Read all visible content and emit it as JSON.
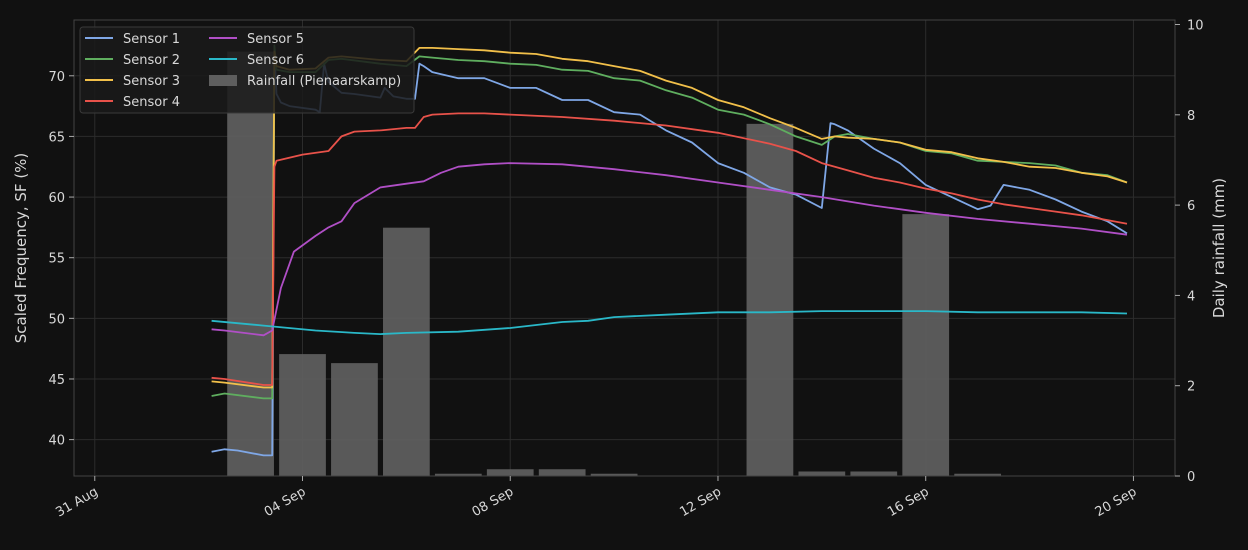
{
  "chart_data": {
    "type": "line",
    "title": "",
    "xlabel": "",
    "ylabel": "Scaled Frequency, SF (%)",
    "y2label": "Daily rainfall (mm)",
    "x_ticks": [
      "31 Aug",
      "04 Sep",
      "08 Sep",
      "12 Sep",
      "16 Sep",
      "20 Sep"
    ],
    "x_tick_days": [
      0,
      4,
      8,
      12,
      16,
      20
    ],
    "xlim": [
      -0.4,
      20.8
    ],
    "ylim": [
      37,
      74.6
    ],
    "y_ticks": [
      40,
      45,
      50,
      55,
      60,
      65,
      70
    ],
    "y2lim": [
      0,
      10.1
    ],
    "y2_ticks": [
      0,
      2,
      4,
      6,
      8,
      10
    ],
    "grid": true,
    "legend_placement": "top-left",
    "series": [
      {
        "name": "Sensor 1",
        "color": "#7fa7e6",
        "x": [
          "2 Sep 06:00",
          "2 Sep 12:00",
          "2 Sep 18:00",
          "3 Sep 06:00",
          "3 Sep 10:00",
          "3 Sep 11:00",
          "3 Sep 12:00",
          "3 Sep 14:00",
          "3 Sep 18:00",
          "4 Sep 06:00",
          "4 Sep 08:00",
          "4 Sep 10:00",
          "4 Sep 12:00",
          "4 Sep 18:00",
          "5 Sep 00:00",
          "5 Sep 12:00",
          "5 Sep 14:00",
          "5 Sep 18:00",
          "6 Sep 00:00",
          "6 Sep 04:00",
          "6 Sep 06:00",
          "6 Sep 08:00",
          "6 Sep 12:00",
          "7 Sep 00:00",
          "7 Sep 12:00",
          "8 Sep 00:00",
          "8 Sep 12:00",
          "9 Sep 00:00",
          "9 Sep 12:00",
          "10 Sep 00:00",
          "10 Sep 12:00",
          "11 Sep 00:00",
          "11 Sep 12:00",
          "12 Sep 00:00",
          "12 Sep 12:00",
          "13 Sep 00:00",
          "13 Sep 12:00",
          "14 Sep 00:00",
          "14 Sep 04:00",
          "14 Sep 06:00",
          "14 Sep 12:00",
          "15 Sep 00:00",
          "15 Sep 12:00",
          "16 Sep 00:00",
          "16 Sep 12:00",
          "17 Sep 00:00",
          "17 Sep 06:00",
          "17 Sep 12:00",
          "18 Sep 00:00",
          "18 Sep 12:00",
          "19 Sep 00:00",
          "19 Sep 12:00",
          "19 Sep 21:00"
        ],
        "y": [
          39.0,
          39.2,
          39.1,
          38.7,
          38.7,
          72.0,
          68.5,
          67.8,
          67.5,
          67.2,
          67.0,
          71.0,
          69.5,
          68.6,
          68.5,
          68.2,
          69.0,
          68.3,
          68.1,
          68.1,
          71.0,
          70.8,
          70.3,
          69.8,
          69.8,
          69.0,
          69.0,
          68.0,
          68.0,
          67.0,
          66.8,
          65.5,
          64.5,
          62.8,
          62.0,
          60.8,
          60.2,
          59.1,
          66.1,
          66.0,
          65.5,
          64.0,
          62.8,
          61.0,
          60.0,
          59.0,
          59.3,
          61.0,
          60.6,
          59.8,
          58.8,
          58.0,
          57.0
        ]
      },
      {
        "name": "Sensor 2",
        "color": "#5fae5f",
        "x": [
          "2 Sep 06:00",
          "2 Sep 12:00",
          "3 Sep 06:00",
          "3 Sep 10:00",
          "3 Sep 11:00",
          "3 Sep 12:00",
          "3 Sep 18:00",
          "4 Sep 06:00",
          "4 Sep 12:00",
          "4 Sep 18:00",
          "5 Sep 12:00",
          "6 Sep 00:00",
          "6 Sep 06:00",
          "6 Sep 12:00",
          "7 Sep 00:00",
          "7 Sep 12:00",
          "8 Sep 00:00",
          "8 Sep 12:00",
          "9 Sep 00:00",
          "9 Sep 12:00",
          "10 Sep 00:00",
          "10 Sep 12:00",
          "11 Sep 00:00",
          "11 Sep 12:00",
          "12 Sep 00:00",
          "12 Sep 12:00",
          "13 Sep 00:00",
          "13 Sep 12:00",
          "14 Sep 00:00",
          "14 Sep 06:00",
          "14 Sep 12:00",
          "15 Sep 00:00",
          "15 Sep 12:00",
          "16 Sep 00:00",
          "16 Sep 12:00",
          "17 Sep 00:00",
          "17 Sep 12:00",
          "18 Sep 00:00",
          "18 Sep 12:00",
          "19 Sep 00:00",
          "19 Sep 12:00",
          "19 Sep 21:00"
        ],
        "y": [
          43.6,
          43.8,
          43.4,
          43.4,
          72.5,
          70.5,
          70.3,
          70.3,
          71.3,
          71.4,
          71.0,
          70.8,
          71.6,
          71.5,
          71.3,
          71.2,
          71.0,
          70.9,
          70.5,
          70.4,
          69.8,
          69.6,
          68.8,
          68.2,
          67.2,
          66.8,
          66.0,
          65.0,
          64.3,
          65.0,
          65.2,
          64.8,
          64.5,
          63.8,
          63.6,
          63.0,
          62.9,
          62.8,
          62.6,
          62.0,
          61.8,
          61.2
        ]
      },
      {
        "name": "Sensor 3",
        "color": "#f2c04a",
        "x": [
          "2 Sep 06:00",
          "2 Sep 12:00",
          "3 Sep 06:00",
          "3 Sep 10:00",
          "3 Sep 11:00",
          "3 Sep 12:00",
          "3 Sep 18:00",
          "4 Sep 06:00",
          "4 Sep 12:00",
          "4 Sep 18:00",
          "5 Sep 12:00",
          "6 Sep 00:00",
          "6 Sep 06:00",
          "6 Sep 12:00",
          "7 Sep 00:00",
          "7 Sep 12:00",
          "8 Sep 00:00",
          "8 Sep 12:00",
          "9 Sep 00:00",
          "9 Sep 12:00",
          "10 Sep 00:00",
          "10 Sep 12:00",
          "11 Sep 00:00",
          "11 Sep 12:00",
          "12 Sep 00:00",
          "12 Sep 12:00",
          "13 Sep 00:00",
          "13 Sep 12:00",
          "14 Sep 00:00",
          "14 Sep 06:00",
          "14 Sep 12:00",
          "15 Sep 00:00",
          "15 Sep 12:00",
          "16 Sep 00:00",
          "16 Sep 12:00",
          "17 Sep 00:00",
          "17 Sep 12:00",
          "18 Sep 00:00",
          "18 Sep 12:00",
          "19 Sep 00:00",
          "19 Sep 12:00",
          "19 Sep 21:00"
        ],
        "y": [
          44.8,
          44.7,
          44.3,
          44.3,
          72.0,
          70.8,
          70.5,
          70.6,
          71.5,
          71.6,
          71.3,
          71.2,
          72.3,
          72.3,
          72.2,
          72.1,
          71.9,
          71.8,
          71.4,
          71.2,
          70.8,
          70.4,
          69.6,
          69.0,
          68.0,
          67.4,
          66.5,
          65.7,
          64.8,
          65.0,
          64.9,
          64.8,
          64.5,
          63.9,
          63.7,
          63.2,
          62.9,
          62.5,
          62.4,
          62.0,
          61.7,
          61.2
        ]
      },
      {
        "name": "Sensor 4",
        "color": "#e8524a",
        "x": [
          "2 Sep 06:00",
          "2 Sep 12:00",
          "3 Sep 06:00",
          "3 Sep 10:00",
          "3 Sep 11:00",
          "3 Sep 12:00",
          "4 Sep 00:00",
          "4 Sep 12:00",
          "4 Sep 18:00",
          "5 Sep 00:00",
          "5 Sep 12:00",
          "6 Sep 00:00",
          "6 Sep 04:00",
          "6 Sep 08:00",
          "6 Sep 12:00",
          "7 Sep 00:00",
          "7 Sep 12:00",
          "8 Sep 00:00",
          "9 Sep 00:00",
          "10 Sep 00:00",
          "11 Sep 00:00",
          "12 Sep 00:00",
          "13 Sep 00:00",
          "13 Sep 12:00",
          "14 Sep 00:00",
          "14 Sep 12:00",
          "15 Sep 00:00",
          "15 Sep 12:00",
          "16 Sep 00:00",
          "16 Sep 12:00",
          "17 Sep 00:00",
          "17 Sep 12:00",
          "18 Sep 00:00",
          "18 Sep 12:00",
          "19 Sep 00:00",
          "19 Sep 12:00",
          "19 Sep 21:00"
        ],
        "y": [
          45.1,
          45.0,
          44.5,
          44.5,
          62.5,
          63.0,
          63.5,
          63.8,
          65.0,
          65.4,
          65.5,
          65.7,
          65.7,
          66.6,
          66.8,
          66.9,
          66.9,
          66.8,
          66.6,
          66.3,
          65.9,
          65.3,
          64.4,
          63.8,
          62.8,
          62.2,
          61.6,
          61.2,
          60.7,
          60.3,
          59.8,
          59.4,
          59.1,
          58.8,
          58.5,
          58.1,
          57.8
        ]
      },
      {
        "name": "Sensor 5",
        "color": "#b04fc6",
        "x": [
          "2 Sep 06:00",
          "2 Sep 12:00",
          "3 Sep 06:00",
          "3 Sep 10:00",
          "3 Sep 14:00",
          "3 Sep 20:00",
          "4 Sep 06:00",
          "4 Sep 12:00",
          "4 Sep 18:00",
          "5 Sep 00:00",
          "5 Sep 12:00",
          "6 Sep 00:00",
          "6 Sep 08:00",
          "6 Sep 16:00",
          "7 Sep 00:00",
          "7 Sep 12:00",
          "8 Sep 00:00",
          "9 Sep 00:00",
          "10 Sep 00:00",
          "11 Sep 00:00",
          "12 Sep 00:00",
          "13 Sep 00:00",
          "14 Sep 00:00",
          "15 Sep 00:00",
          "16 Sep 00:00",
          "17 Sep 00:00",
          "18 Sep 00:00",
          "19 Sep 00:00",
          "19 Sep 21:00"
        ],
        "y": [
          49.1,
          49.0,
          48.6,
          49.0,
          52.5,
          55.5,
          56.8,
          57.5,
          58.0,
          59.5,
          60.8,
          61.1,
          61.3,
          62.0,
          62.5,
          62.7,
          62.8,
          62.7,
          62.3,
          61.8,
          61.2,
          60.6,
          60.0,
          59.3,
          58.7,
          58.2,
          57.8,
          57.4,
          56.9
        ]
      },
      {
        "name": "Sensor 6",
        "color": "#2ab8c8",
        "x": [
          "2 Sep 06:00",
          "3 Sep 06:00",
          "4 Sep 06:00",
          "5 Sep 00:00",
          "5 Sep 12:00",
          "6 Sep 00:00",
          "7 Sep 00:00",
          "8 Sep 00:00",
          "9 Sep 00:00",
          "9 Sep 12:00",
          "10 Sep 00:00",
          "11 Sep 00:00",
          "12 Sep 00:00",
          "13 Sep 00:00",
          "14 Sep 00:00",
          "15 Sep 00:00",
          "16 Sep 00:00",
          "17 Sep 00:00",
          "18 Sep 00:00",
          "19 Sep 00:00",
          "19 Sep 21:00"
        ],
        "y": [
          49.8,
          49.4,
          49.0,
          48.8,
          48.7,
          48.8,
          48.9,
          49.2,
          49.7,
          49.8,
          50.1,
          50.3,
          50.5,
          50.5,
          50.6,
          50.6,
          50.6,
          50.5,
          50.5,
          50.5,
          50.4
        ]
      }
    ],
    "bars": {
      "name": "Rainfall (Pienaarskamp)",
      "color": "#5e5e5e",
      "axis": "right",
      "x": [
        "3 Sep",
        "4 Sep",
        "5 Sep",
        "6 Sep",
        "7 Sep",
        "8 Sep",
        "9 Sep",
        "10 Sep",
        "13 Sep",
        "14 Sep",
        "15 Sep",
        "16 Sep",
        "17 Sep"
      ],
      "values": [
        9.4,
        2.7,
        2.5,
        5.5,
        0.05,
        0.15,
        0.15,
        0.05,
        7.8,
        0.1,
        0.1,
        5.8,
        0.05
      ]
    }
  }
}
